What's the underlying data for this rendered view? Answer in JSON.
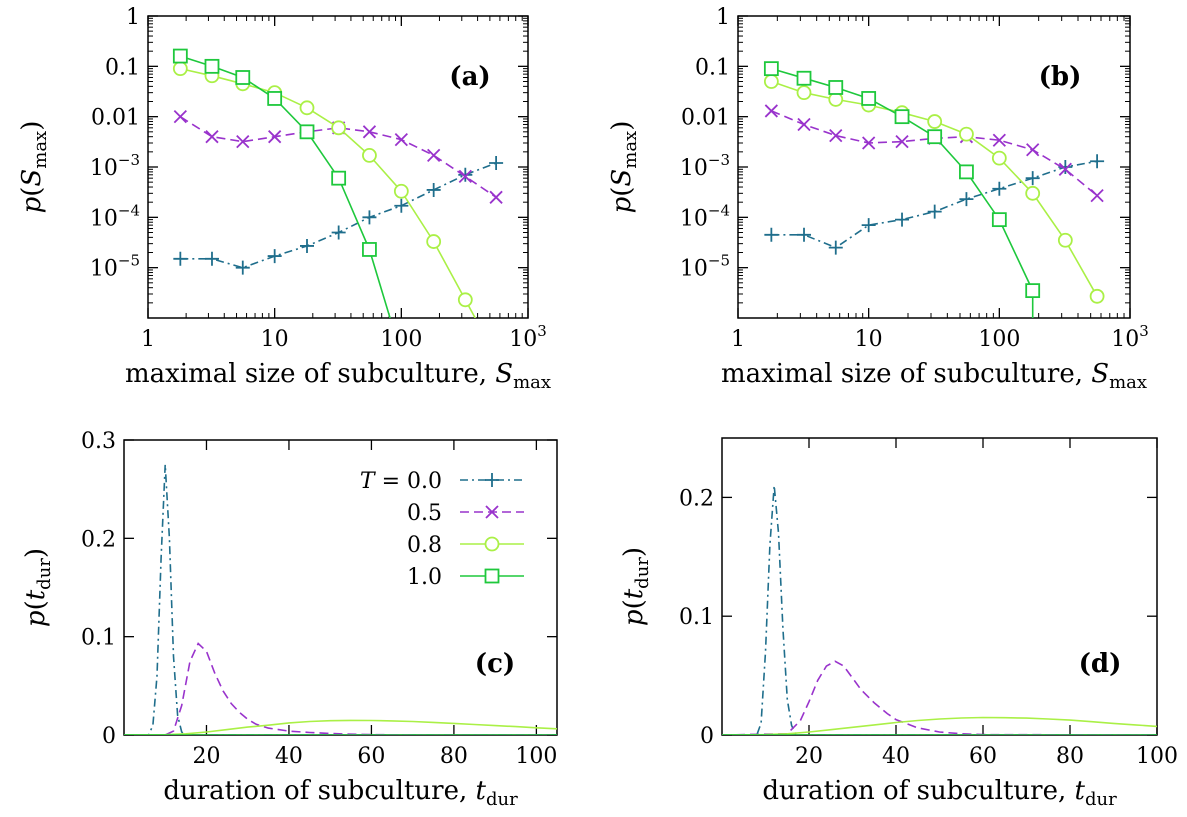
{
  "colors": {
    "T0": "#1f6e8c",
    "T05": "#9933cc",
    "T08": "#aaf046",
    "T10": "#1ec83c"
  },
  "chart_data": [
    {
      "id": "a",
      "type": "line",
      "panel_label": "(a)",
      "xscale": "log",
      "yscale": "log",
      "xlim": [
        1,
        1000
      ],
      "ylim": [
        1e-06,
        1
      ],
      "xlabel": "maximal size of subculture, S_max",
      "xlabel_parts": {
        "main": "maximal size of subculture, ",
        "var": "S",
        "sub": "max"
      },
      "ylabel_parts": {
        "var": "p",
        "open": "(",
        "inner": "S",
        "sub": "max",
        "close": ")"
      },
      "x_ticks": [
        {
          "v": 1,
          "label": "1"
        },
        {
          "v": 10,
          "label": "10"
        },
        {
          "v": 100,
          "label": "100"
        },
        {
          "v": 1000,
          "label": "10",
          "sup": "3"
        }
      ],
      "y_ticks": [
        {
          "v": 1,
          "label": "1"
        },
        {
          "v": 0.1,
          "label": "0.1"
        },
        {
          "v": 0.01,
          "label": "0.01"
        },
        {
          "v": 0.001,
          "label": "10",
          "sup": "−3"
        },
        {
          "v": 0.0001,
          "label": "10",
          "sup": "−4"
        },
        {
          "v": 1e-05,
          "label": "10",
          "sup": "−5"
        }
      ],
      "series": [
        {
          "key": "T0",
          "marker": "plus",
          "dash": "8,4,2,4",
          "x": [
            1.8,
            3.2,
            5.6,
            10,
            18,
            32,
            56,
            100,
            180,
            320,
            560
          ],
          "y": [
            1.5e-05,
            1.5e-05,
            1e-05,
            1.7e-05,
            2.7e-05,
            5e-05,
            0.0001,
            0.00017,
            0.00035,
            0.0007,
            0.0012
          ]
        },
        {
          "key": "T05",
          "marker": "cross",
          "dash": "9,5",
          "x": [
            1.8,
            3.2,
            5.6,
            10,
            18,
            32,
            56,
            100,
            180,
            320,
            560
          ],
          "y": [
            0.01,
            0.004,
            0.0032,
            0.004,
            0.005,
            0.006,
            0.005,
            0.0035,
            0.0017,
            0.00065,
            0.00025
          ]
        },
        {
          "key": "T08",
          "marker": "circle",
          "dash": "",
          "x": [
            1.8,
            3.2,
            5.6,
            10,
            18,
            32,
            56,
            100,
            180,
            320,
            420
          ],
          "y": [
            0.09,
            0.065,
            0.045,
            0.03,
            0.015,
            0.006,
            0.0017,
            0.00033,
            3.3e-05,
            2.3e-06,
            6.5e-07
          ],
          "marker_count": 10
        },
        {
          "key": "T10",
          "marker": "square",
          "dash": "",
          "x": [
            1.8,
            3.2,
            5.6,
            10,
            18,
            32,
            56,
            85
          ],
          "y": [
            0.16,
            0.1,
            0.06,
            0.023,
            0.005,
            0.0006,
            2.3e-05,
            7e-07
          ],
          "marker_count": 7
        }
      ]
    },
    {
      "id": "b",
      "type": "line",
      "panel_label": "(b)",
      "xscale": "log",
      "yscale": "log",
      "xlim": [
        1,
        1000
      ],
      "ylim": [
        1e-06,
        1
      ],
      "xlabel": "maximal size of subculture, S_max",
      "xlabel_parts": {
        "main": "maximal size of subculture, ",
        "var": "S",
        "sub": "max"
      },
      "ylabel_parts": {
        "var": "p",
        "open": "(",
        "inner": "S",
        "sub": "max",
        "close": ")"
      },
      "x_ticks": [
        {
          "v": 1,
          "label": "1"
        },
        {
          "v": 10,
          "label": "10"
        },
        {
          "v": 100,
          "label": "100"
        },
        {
          "v": 1000,
          "label": "10",
          "sup": "3"
        }
      ],
      "y_ticks": [
        {
          "v": 1,
          "label": "1"
        },
        {
          "v": 0.1,
          "label": "0.1"
        },
        {
          "v": 0.01,
          "label": "0.01"
        },
        {
          "v": 0.001,
          "label": "10",
          "sup": "−3"
        },
        {
          "v": 0.0001,
          "label": "10",
          "sup": "−4"
        },
        {
          "v": 1e-05,
          "label": "10",
          "sup": "−5"
        }
      ],
      "series": [
        {
          "key": "T0",
          "marker": "plus",
          "dash": "8,4,2,4",
          "x": [
            1.8,
            3.2,
            5.6,
            10,
            18,
            32,
            56,
            100,
            180,
            320,
            560
          ],
          "y": [
            4.5e-05,
            4.5e-05,
            2.5e-05,
            7e-05,
            9e-05,
            0.00013,
            0.00023,
            0.00037,
            0.0006,
            0.001,
            0.0013
          ]
        },
        {
          "key": "T05",
          "marker": "cross",
          "dash": "9,5",
          "x": [
            1.8,
            3.2,
            5.6,
            10,
            18,
            32,
            56,
            100,
            180,
            320,
            560
          ],
          "y": [
            0.013,
            0.007,
            0.0042,
            0.003,
            0.0032,
            0.0037,
            0.004,
            0.0034,
            0.0022,
            0.0009,
            0.00027
          ]
        },
        {
          "key": "T08",
          "marker": "circle",
          "dash": "",
          "x": [
            1.8,
            3.2,
            5.6,
            10,
            18,
            32,
            56,
            100,
            180,
            320,
            560
          ],
          "y": [
            0.05,
            0.03,
            0.022,
            0.017,
            0.012,
            0.008,
            0.0045,
            0.0015,
            0.0003,
            3.5e-05,
            2.7e-06
          ]
        },
        {
          "key": "T10",
          "marker": "square",
          "dash": "",
          "x": [
            1.8,
            3.2,
            5.6,
            10,
            18,
            32,
            56,
            100,
            180,
            180
          ],
          "y": [
            0.09,
            0.058,
            0.038,
            0.023,
            0.01,
            0.004,
            0.0008,
            9e-05,
            3.5e-06,
            7e-07
          ],
          "marker_count": 9
        }
      ]
    },
    {
      "id": "c",
      "type": "line",
      "panel_label": "(c)",
      "xscale": "linear",
      "yscale": "linear",
      "xlim": [
        0,
        105
      ],
      "ylim": [
        0,
        0.3
      ],
      "xlabel": "duration of subculture, t_dur",
      "xlabel_parts": {
        "main": "duration of subculture, ",
        "var": "t",
        "sub": "dur"
      },
      "ylabel_parts": {
        "var": "p",
        "open": "(",
        "inner": "t",
        "sub": "dur",
        "close": ")"
      },
      "x_ticks": [
        {
          "v": 20,
          "label": "20"
        },
        {
          "v": 40,
          "label": "40"
        },
        {
          "v": 60,
          "label": "60"
        },
        {
          "v": 80,
          "label": "80"
        },
        {
          "v": 100,
          "label": "100"
        }
      ],
      "y_ticks": [
        {
          "v": 0,
          "label": "0"
        },
        {
          "v": 0.1,
          "label": "0.1"
        },
        {
          "v": 0.2,
          "label": "0.2"
        },
        {
          "v": 0.3,
          "label": "0.3"
        }
      ],
      "series": [
        {
          "key": "T0",
          "dash": "8,4,2,4",
          "x": [
            0,
            6,
            7,
            8,
            9,
            10,
            11,
            12,
            13,
            14,
            15,
            105
          ],
          "y": [
            0,
            0,
            0.01,
            0.06,
            0.18,
            0.275,
            0.2,
            0.08,
            0.02,
            0.003,
            0,
            0
          ]
        },
        {
          "key": "T05",
          "dash": "9,5",
          "x": [
            0,
            10,
            12,
            14,
            16,
            18,
            20,
            22,
            24,
            26,
            28,
            30,
            32,
            35,
            40,
            45,
            50,
            55,
            60,
            70,
            105
          ],
          "y": [
            0,
            0,
            0.004,
            0.03,
            0.075,
            0.093,
            0.085,
            0.063,
            0.045,
            0.032,
            0.023,
            0.016,
            0.011,
            0.007,
            0.004,
            0.0025,
            0.0015,
            0.0008,
            0.0004,
            0,
            0
          ]
        },
        {
          "key": "T08",
          "dash": "",
          "x": [
            0,
            10,
            15,
            20,
            25,
            30,
            35,
            40,
            45,
            50,
            55,
            60,
            65,
            70,
            75,
            80,
            85,
            90,
            95,
            100,
            105
          ],
          "y": [
            0,
            0.0003,
            0.0012,
            0.003,
            0.0055,
            0.008,
            0.01,
            0.0123,
            0.0137,
            0.0145,
            0.0148,
            0.0147,
            0.0143,
            0.0137,
            0.0128,
            0.0118,
            0.0107,
            0.0096,
            0.0085,
            0.0073,
            0.0063
          ]
        },
        {
          "key": "T10",
          "dash": "",
          "x": [
            0,
            105
          ],
          "y": [
            0,
            0
          ]
        }
      ],
      "legend": {
        "entries": [
          {
            "key": "T0",
            "label": "0.0",
            "marker": "plus",
            "dash": "8,4,2,4"
          },
          {
            "key": "T05",
            "label": "0.5",
            "marker": "cross",
            "dash": "9,5"
          },
          {
            "key": "T08",
            "label": "0.8",
            "marker": "circle",
            "dash": ""
          },
          {
            "key": "T10",
            "label": "1.0",
            "marker": "square",
            "dash": ""
          }
        ],
        "prefix_var": "T",
        "prefix_eq": " = "
      }
    },
    {
      "id": "d",
      "type": "line",
      "panel_label": "(d)",
      "xscale": "linear",
      "yscale": "linear",
      "xlim": [
        0,
        100
      ],
      "ylim": [
        0,
        0.25
      ],
      "xlabel": "duration of subculture, t_dur",
      "xlabel_parts": {
        "main": "duration of subculture, ",
        "var": "t",
        "sub": "dur"
      },
      "ylabel_parts": {
        "var": "p",
        "open": "(",
        "inner": "t",
        "sub": "dur",
        "close": ")"
      },
      "x_ticks": [
        {
          "v": 20,
          "label": "20"
        },
        {
          "v": 40,
          "label": "40"
        },
        {
          "v": 60,
          "label": "60"
        },
        {
          "v": 80,
          "label": "80"
        },
        {
          "v": 100,
          "label": "100"
        }
      ],
      "y_ticks": [
        {
          "v": 0,
          "label": "0"
        },
        {
          "v": 0.1,
          "label": "0.1"
        },
        {
          "v": 0.2,
          "label": "0.2"
        }
      ],
      "series": [
        {
          "key": "T0",
          "dash": "8,4,2,4",
          "x": [
            0,
            8,
            9,
            10,
            11,
            12,
            13,
            14,
            15,
            16,
            17,
            100
          ],
          "y": [
            0,
            0,
            0.01,
            0.07,
            0.16,
            0.21,
            0.17,
            0.09,
            0.03,
            0.008,
            0,
            0
          ]
        },
        {
          "key": "T05",
          "dash": "9,5",
          "x": [
            0,
            15,
            18,
            20,
            22,
            24,
            26,
            28,
            30,
            32,
            35,
            38,
            40,
            45,
            50,
            55,
            60,
            100
          ],
          "y": [
            0,
            0.001,
            0.012,
            0.028,
            0.046,
            0.058,
            0.062,
            0.058,
            0.048,
            0.038,
            0.027,
            0.018,
            0.013,
            0.006,
            0.0025,
            0.001,
            0.0003,
            0
          ]
        },
        {
          "key": "T08",
          "dash": "",
          "x": [
            0,
            10,
            15,
            20,
            25,
            30,
            35,
            40,
            45,
            50,
            55,
            60,
            65,
            70,
            75,
            80,
            85,
            90,
            95,
            100
          ],
          "y": [
            0,
            0.0003,
            0.001,
            0.0025,
            0.0045,
            0.0065,
            0.0085,
            0.0105,
            0.0122,
            0.0135,
            0.0143,
            0.0147,
            0.0146,
            0.0142,
            0.0135,
            0.0125,
            0.0112,
            0.0098,
            0.0085,
            0.0072
          ]
        },
        {
          "key": "T10",
          "dash": "",
          "x": [
            0,
            100
          ],
          "y": [
            0,
            0
          ]
        }
      ]
    }
  ]
}
